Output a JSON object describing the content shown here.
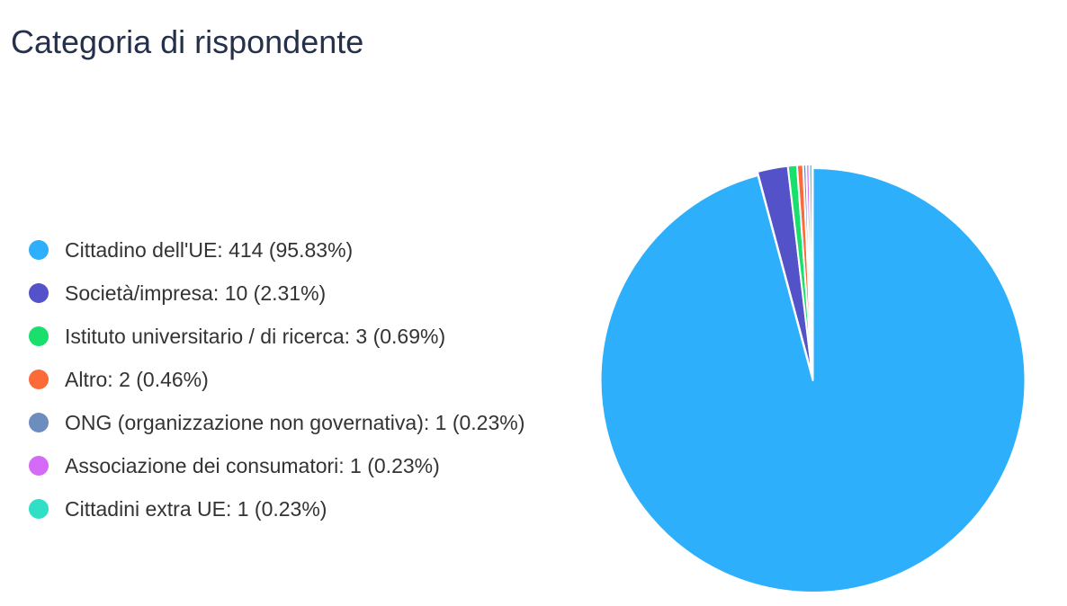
{
  "chart_data": {
    "type": "pie",
    "title": "Categoria di rispondente",
    "legend_position": "left",
    "slices": [
      {
        "label": "Cittadino dell'UE: 414 (95.83%)",
        "name": "Cittadino dell'UE",
        "value": 414,
        "percent": 95.83,
        "color": "#2eaffb"
      },
      {
        "label": "Società/impresa: 10 (2.31%)",
        "name": "Società/impresa",
        "value": 10,
        "percent": 2.31,
        "color": "#5452c8"
      },
      {
        "label": "Istituto universitario / di ricerca: 3 (0.69%)",
        "name": "Istituto universitario / di ricerca",
        "value": 3,
        "percent": 0.69,
        "color": "#19e06d"
      },
      {
        "label": "Altro: 2 (0.46%)",
        "name": "Altro",
        "value": 2,
        "percent": 0.46,
        "color": "#fc6a37"
      },
      {
        "label": "ONG (organizzazione non governativa): 1 (0.23%)",
        "name": "ONG (organizzazione non governativa)",
        "value": 1,
        "percent": 0.23,
        "color": "#6e8dbf"
      },
      {
        "label": "Associazione dei consumatori: 1 (0.23%)",
        "name": "Associazione dei consumatori",
        "value": 1,
        "percent": 0.23,
        "color": "#d56af8"
      },
      {
        "label": "Cittadini extra UE: 1 (0.23%)",
        "name": "Cittadini extra UE",
        "value": 1,
        "percent": 0.23,
        "color": "#2fe0c6"
      }
    ]
  }
}
